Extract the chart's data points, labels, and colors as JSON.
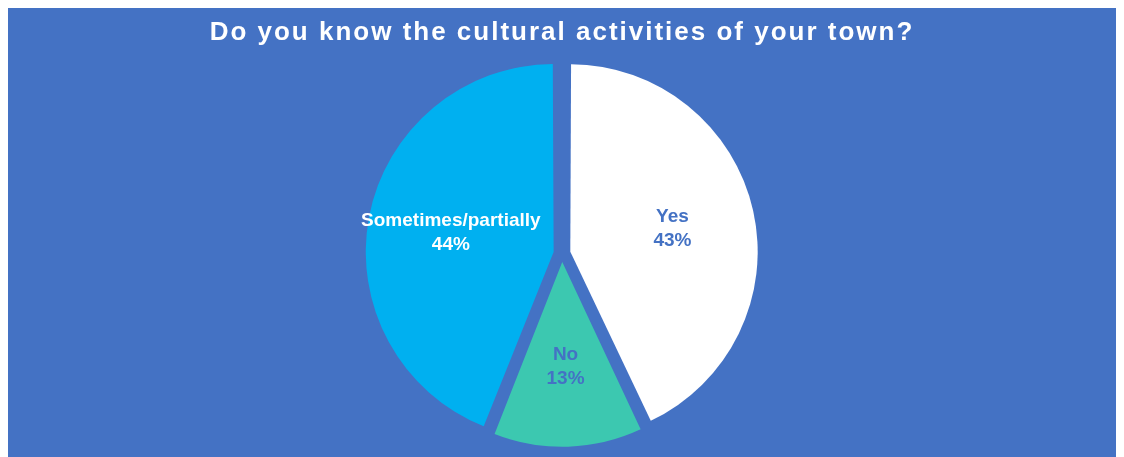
{
  "chart_data": {
    "type": "pie",
    "title": "Do you know the cultural activities of your town?",
    "categories": [
      "Yes",
      "No",
      "Sometimes/partially"
    ],
    "values": [
      43,
      13,
      44
    ],
    "value_labels": [
      "43%",
      "13%",
      "44%"
    ],
    "colors": [
      "#ffffff",
      "#3cc8b0",
      "#00b0f0"
    ],
    "legend": false
  }
}
